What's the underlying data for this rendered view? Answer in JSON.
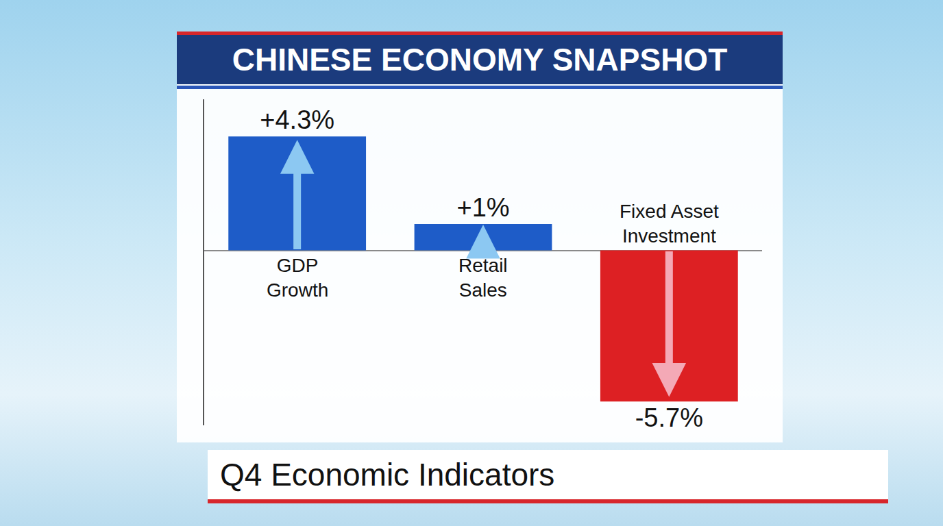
{
  "chart_data": {
    "type": "bar",
    "title": "CHINESE ECONOMY SNAPSHOT",
    "subtitle": "Q4 Economic Indicators",
    "categories": [
      "GDP Growth",
      "Retail Sales",
      "Fixed Asset Investment"
    ],
    "values": [
      4.3,
      1,
      -5.7
    ],
    "value_labels": [
      "+4.3%",
      "+1%",
      "-5.7%"
    ],
    "colors": [
      "#1e5cc8",
      "#1e5cc8",
      "#dd2023"
    ],
    "ylim": [
      -6.6,
      5.7
    ],
    "yticks": [],
    "grid": false,
    "data_labels": true,
    "tick_labels": false
  }
}
